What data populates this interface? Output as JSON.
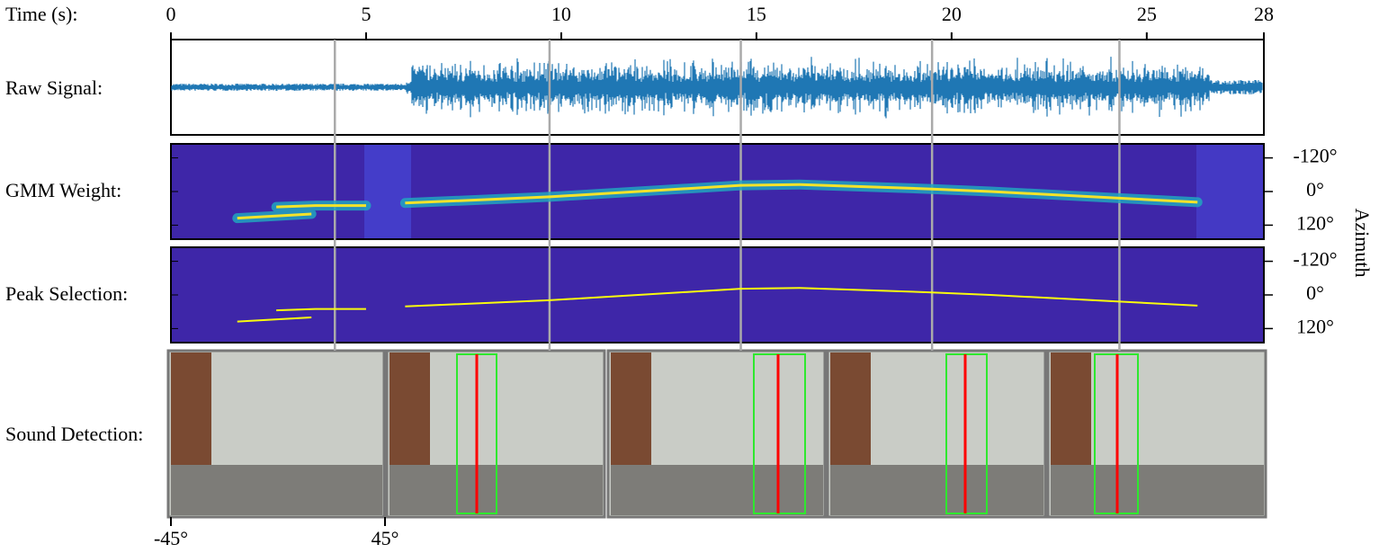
{
  "time_axis": {
    "label": "Time (s):",
    "xlim": [
      0,
      28
    ],
    "xticks": [
      0,
      5,
      10,
      15,
      20,
      25,
      28
    ]
  },
  "rows": {
    "raw_signal": "Raw Signal:",
    "gmm_weight": "GMM Weight:",
    "peak_selection": "Peak Selection:",
    "sound_detection": "Sound Detection:"
  },
  "azimuth_axis": {
    "label": "Azimuth",
    "ylim": [
      -170,
      170
    ],
    "yticks": [
      {
        "value": -120,
        "label": "-120°"
      },
      {
        "value": 0,
        "label": "0°"
      },
      {
        "value": 120,
        "label": "120°"
      }
    ]
  },
  "frame_times": [
    4.2,
    9.7,
    14.6,
    19.5,
    24.3
  ],
  "peak_track": {
    "x": [
      1.7,
      3.6,
      null,
      2.7,
      3.7,
      5.0,
      null,
      6.0,
      9.7,
      14.6,
      16.1,
      19.5,
      21.0,
      26.3
    ],
    "values": [
      95,
      80,
      null,
      55,
      50,
      50,
      null,
      41,
      19,
      -22,
      -25,
      -9,
      0,
      38
    ]
  },
  "frame_angle_axis": {
    "xlim": [
      -45,
      45
    ],
    "xticks": [
      {
        "value": -45,
        "label": "-45°"
      },
      {
        "value": 45,
        "label": "45°"
      }
    ]
  }
}
